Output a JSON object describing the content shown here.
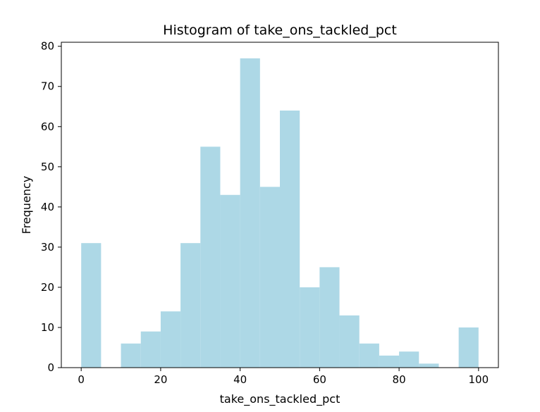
{
  "chart_data": {
    "type": "bar",
    "title": "Histogram of take_ons_tackled_pct",
    "xlabel": "take_ons_tackled_pct",
    "ylabel": "Frequency",
    "bin_edges": [
      0,
      5,
      10,
      15,
      20,
      25,
      30,
      35,
      40,
      45,
      50,
      55,
      60,
      65,
      70,
      75,
      80,
      85,
      90,
      95,
      100
    ],
    "values": [
      31,
      0,
      6,
      9,
      14,
      31,
      55,
      43,
      77,
      45,
      64,
      20,
      25,
      13,
      6,
      3,
      4,
      1,
      0,
      10
    ],
    "xlim": [
      -5,
      105
    ],
    "ylim": [
      0,
      81
    ],
    "xticks": [
      0,
      20,
      40,
      60,
      80,
      100
    ],
    "yticks": [
      0,
      10,
      20,
      30,
      40,
      50,
      60,
      70,
      80
    ],
    "grid": false,
    "bar_color": "#add8e6"
  }
}
